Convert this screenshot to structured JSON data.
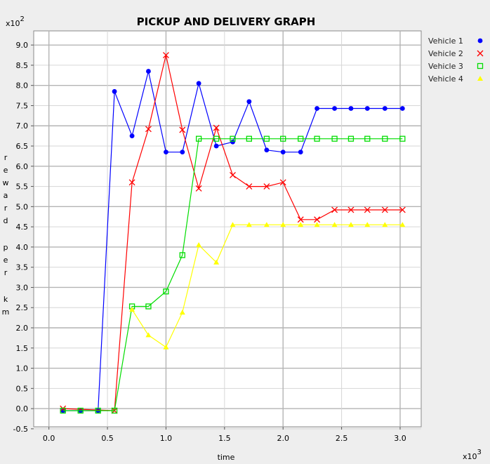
{
  "chart_data": {
    "type": "line",
    "title": "PICKUP AND DELIVERY GRAPH",
    "xlabel": "time",
    "ylabel": "reward per km",
    "x_multiplier": "x10",
    "x_exponent": "3",
    "y_multiplier": "x10",
    "y_exponent": "2",
    "xlim": [
      -0.13,
      3.18
    ],
    "ylim": [
      -0.45,
      9.35
    ],
    "x_ticks": [
      "0.0",
      "0.5",
      "1.0",
      "1.5",
      "2.0",
      "2.5",
      "3.0"
    ],
    "y_ticks": [
      "-0.5",
      "0.0",
      "0.5",
      "1.0",
      "1.5",
      "2.0",
      "2.5",
      "3.0",
      "3.5",
      "4.0",
      "4.5",
      "5.0",
      "5.5",
      "6.0",
      "6.5",
      "7.0",
      "7.5",
      "8.0",
      "8.5",
      "9.0"
    ],
    "grid": true,
    "legend_position": "top-right",
    "series": [
      {
        "name": "Vehicle 1",
        "color": "#0000ff",
        "marker": "circle",
        "x": [
          0.12,
          0.27,
          0.42,
          0.56,
          0.71,
          0.85,
          1.0,
          1.14,
          1.28,
          1.43,
          1.57,
          1.71,
          1.86,
          2.0,
          2.15,
          2.29,
          2.44,
          2.58,
          2.72,
          2.87,
          3.02
        ],
        "y": [
          -0.05,
          -0.05,
          -0.05,
          7.85,
          6.75,
          8.35,
          6.35,
          6.35,
          8.05,
          6.5,
          6.6,
          7.6,
          6.4,
          6.35,
          6.35,
          7.43,
          7.43,
          7.43,
          7.43,
          7.43,
          7.43
        ]
      },
      {
        "name": "Vehicle 2",
        "color": "#ff0000",
        "marker": "x",
        "x": [
          0.12,
          0.56,
          0.71,
          0.85,
          1.0,
          1.14,
          1.28,
          1.43,
          1.57,
          1.71,
          1.86,
          2.0,
          2.15,
          2.29,
          2.44,
          2.58,
          2.72,
          2.87,
          3.02
        ],
        "y": [
          0.0,
          -0.05,
          5.6,
          6.92,
          8.75,
          6.9,
          5.45,
          6.95,
          5.78,
          5.5,
          5.5,
          5.6,
          4.68,
          4.68,
          4.92,
          4.92,
          4.92,
          4.92,
          4.92
        ]
      },
      {
        "name": "Vehicle 3",
        "color": "#00dd00",
        "marker": "square",
        "x": [
          0.12,
          0.27,
          0.42,
          0.56,
          0.71,
          0.85,
          1.0,
          1.14,
          1.28,
          1.43,
          1.57,
          1.71,
          1.86,
          2.0,
          2.15,
          2.29,
          2.44,
          2.58,
          2.72,
          2.87,
          3.02
        ],
        "y": [
          -0.05,
          -0.05,
          -0.05,
          -0.05,
          2.53,
          2.53,
          2.9,
          3.8,
          6.68,
          6.68,
          6.68,
          6.68,
          6.68,
          6.68,
          6.68,
          6.68,
          6.68,
          6.68,
          6.68,
          6.68,
          6.68
        ]
      },
      {
        "name": "Vehicle 4",
        "color": "#ffff00",
        "marker": "triangle",
        "x": [
          0.71,
          0.85,
          1.0,
          1.14,
          1.28,
          1.43,
          1.57,
          1.71,
          1.86,
          2.0,
          2.15,
          2.29,
          2.44,
          2.58,
          2.72,
          2.87,
          3.02
        ],
        "y": [
          2.45,
          1.82,
          1.52,
          2.38,
          4.05,
          3.62,
          4.55,
          4.55,
          4.55,
          4.55,
          4.55,
          4.55,
          4.55,
          4.55,
          4.55,
          4.55,
          4.55
        ]
      }
    ]
  }
}
